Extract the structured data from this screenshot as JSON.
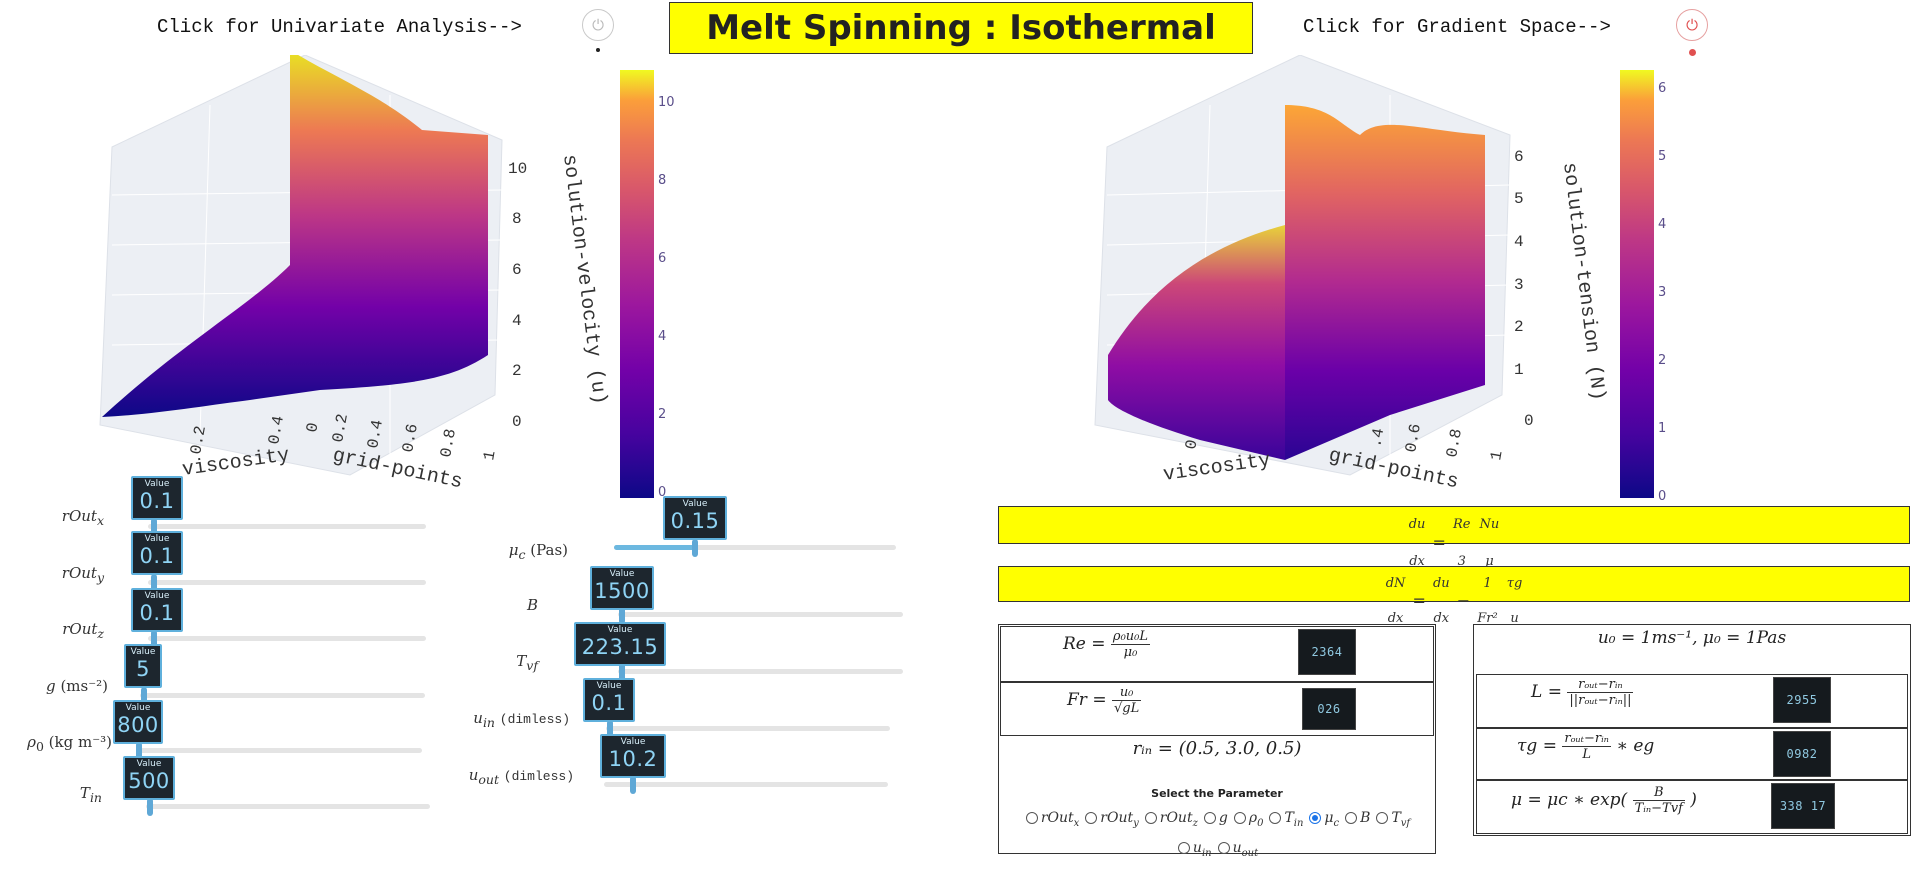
{
  "header": {
    "univariate_link": "Click for Univariate Analysis-->",
    "gradient_link": "Click for Gradient Space-->",
    "title": "Melt Spinning : Isothermal"
  },
  "plot_left": {
    "z_axis_title": "solution-velocity (u)",
    "x_axis_title": "viscosity",
    "y_axis_title": "grid-points",
    "x_ticks": [
      "0.2",
      "0.4"
    ],
    "y_ticks": [
      "0",
      "0.2",
      "0.4",
      "0.6",
      "0.8",
      "1"
    ],
    "z_ticks": [
      "0",
      "2",
      "4",
      "6",
      "8",
      "10"
    ],
    "colorbar_ticks": [
      "0",
      "2",
      "4",
      "6",
      "8",
      "10"
    ]
  },
  "plot_right": {
    "z_axis_title": "solution-tension (N)",
    "x_axis_title": "viscosity",
    "y_axis_title": "grid-points",
    "x_ticks": [
      "0"
    ],
    "y_ticks": [
      ".4",
      "0.6",
      "0.8",
      "1"
    ],
    "z_ticks": [
      "0",
      "1",
      "2",
      "3",
      "4",
      "5",
      "6"
    ],
    "colorbar_ticks": [
      "0",
      "1",
      "2",
      "3",
      "4",
      "5",
      "6"
    ]
  },
  "sliders": {
    "value_title": "Value",
    "rOutx": {
      "label": "rOut",
      "sub": "x",
      "unit": "",
      "value": "0.1",
      "fraction": 0.04
    },
    "rOuty": {
      "label": "rOut",
      "sub": "y",
      "unit": "",
      "value": "0.1",
      "fraction": 0.04
    },
    "rOutz": {
      "label": "rOut",
      "sub": "z",
      "unit": "",
      "value": "0.1",
      "fraction": 0.04
    },
    "g": {
      "label": "g",
      "sub": "",
      "unit": "(ms⁻²)",
      "value": "5",
      "fraction": 0.02
    },
    "rho0": {
      "label": "ρ",
      "sub": "0",
      "unit": "(kg m⁻³)",
      "value": "800",
      "fraction": 0.02
    },
    "Tin": {
      "label": "T",
      "sub": "in",
      "unit": "",
      "value": "500",
      "fraction": 0.03
    },
    "mu_c": {
      "label": "μ",
      "sub": "c",
      "unit": "(Pas)",
      "value": "0.15",
      "fraction": 0.28
    },
    "B": {
      "label": "B",
      "sub": "",
      "unit": "",
      "value": "1500",
      "fraction": 0.02
    },
    "Tvf": {
      "label": "T",
      "sub": "vf",
      "unit": "",
      "value": "223.15",
      "fraction": 0.02
    },
    "uin": {
      "label": "u",
      "sub": "in",
      "unit": "(dimless)",
      "value": "0.1",
      "fraction": 0.02
    },
    "uout": {
      "label": "u",
      "sub": "out",
      "unit": "(dimless)",
      "value": "10.2",
      "fraction": 0.08
    }
  },
  "equations": {
    "eq1_lhs_num": "du",
    "eq1_lhs_den": "dx",
    "eq1_r1_num": "Re",
    "eq1_r1_den": "3",
    "eq1_r2_num": "Nu",
    "eq1_r2_den": "μ",
    "eq2_lhs_num": "dN",
    "eq2_lhs_den": "dx",
    "eq2_r1_num": "du",
    "eq2_r1_den": "dx",
    "eq2_r2_num": "1",
    "eq2_r2_den": "Fr²",
    "eq2_r3_num": "τg",
    "eq2_r3_den": "u"
  },
  "left_panel": {
    "re_label": "Re =",
    "re_num": "ρ₀u₀L",
    "re_den": "μ₀",
    "re_value": "2364",
    "fr_label": "Fr =",
    "fr_num": "u₀",
    "fr_den": "√gL",
    "fr_value": "026",
    "rin_text": "rᵢₙ = (0.5, 3.0, 0.5)",
    "select_title": "Select the Parameter",
    "options": [
      {
        "base": "rOut",
        "sub": "x",
        "selected": false
      },
      {
        "base": "rOut",
        "sub": "y",
        "selected": false
      },
      {
        "base": "rOut",
        "sub": "z",
        "selected": false
      },
      {
        "base": "g",
        "sub": "",
        "selected": false
      },
      {
        "base": "ρ",
        "sub": "0",
        "selected": false
      },
      {
        "base": "T",
        "sub": "in",
        "selected": false
      },
      {
        "base": "μ",
        "sub": "c",
        "selected": true
      },
      {
        "base": "B",
        "sub": "",
        "selected": false
      },
      {
        "base": "T",
        "sub": "vf",
        "selected": false
      },
      {
        "base": "u",
        "sub": "in",
        "selected": false
      },
      {
        "base": "u",
        "sub": "out",
        "selected": false
      }
    ]
  },
  "right_panel": {
    "header_text": "u₀ = 1ms⁻¹, μ₀ = 1Pas",
    "L_label": "L =",
    "L_num": "rₒᵤₜ−rᵢₙ",
    "L_den": "||rₒᵤₜ−rᵢₙ||",
    "L_value": "2955",
    "tau_label": "τg =",
    "tau_num": "rₒᵤₜ−rᵢₙ",
    "tau_den": "L",
    "tau_suffix": "∗ eg",
    "tau_value": "0982",
    "mu_label": "μ = μc ∗ exp(",
    "mu_num": "B",
    "mu_den": "Tᵢₙ−Tvf",
    "mu_suffix": ")",
    "mu_value": "338 17"
  }
}
